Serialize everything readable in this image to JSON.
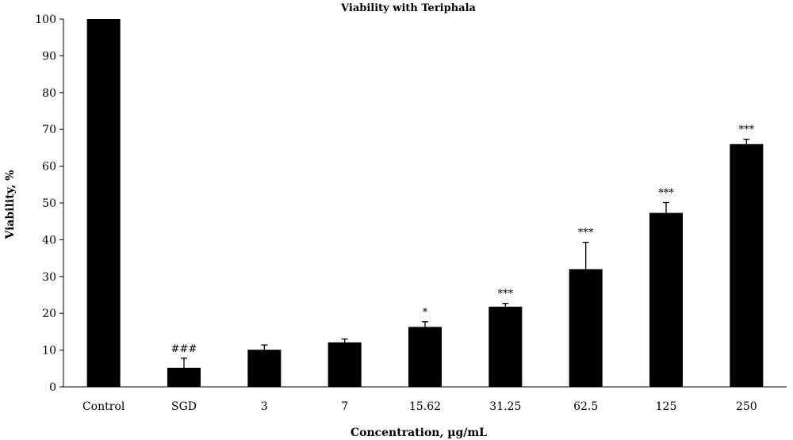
{
  "chart_data": {
    "type": "bar",
    "title": "Viability with Teriphala",
    "xlabel": "Concentration, µg/mL",
    "ylabel": "Viability, %",
    "ylim": [
      0,
      100
    ],
    "yticks": [
      0,
      10,
      20,
      30,
      40,
      50,
      60,
      70,
      80,
      90,
      100
    ],
    "categories": [
      "Control",
      "SGD",
      "3",
      "7",
      "15.62",
      "31.25",
      "62.5",
      "125",
      "250"
    ],
    "values": [
      100,
      5.2,
      10.1,
      12.1,
      16.3,
      21.8,
      32.0,
      47.3,
      66.0
    ],
    "error_upper": [
      0,
      2.6,
      1.3,
      0.9,
      1.4,
      0.9,
      7.3,
      2.8,
      1.3
    ],
    "significance": [
      "",
      "###",
      "",
      "",
      "*",
      "***",
      "***",
      "***",
      "***"
    ],
    "bar_color": "#000000",
    "grid": false,
    "legend": "none"
  }
}
